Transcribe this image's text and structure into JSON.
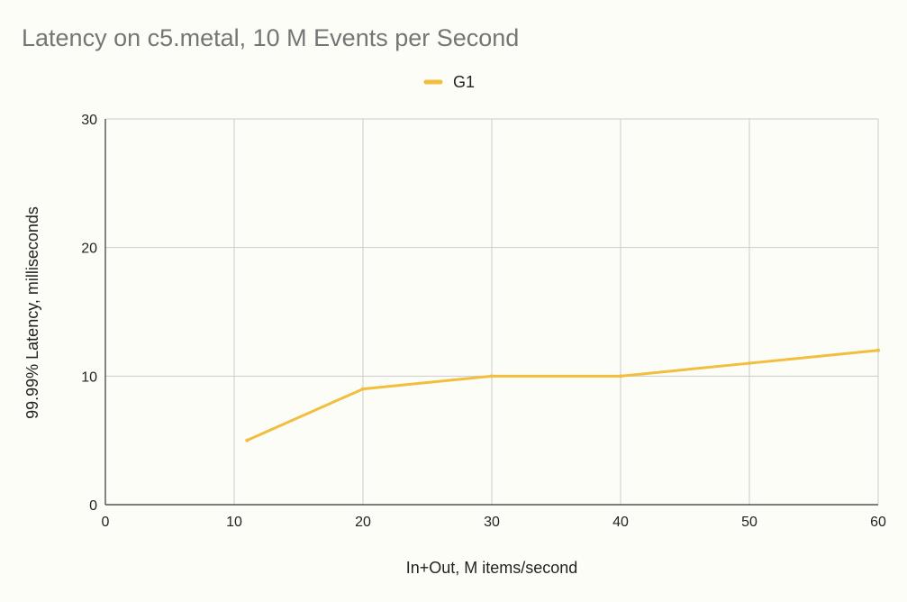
{
  "chart_data": {
    "type": "line",
    "title": "Latency on c5.metal, 10 M Events per Second",
    "xlabel": "In+Out, M items/second",
    "ylabel": "99.99% Latency, milliseconds",
    "xlim": [
      0,
      60
    ],
    "ylim": [
      0,
      30
    ],
    "xticks": [
      0,
      10,
      20,
      30,
      40,
      50,
      60
    ],
    "yticks": [
      0,
      10,
      20,
      30
    ],
    "grid": true,
    "legend_position": "top-center",
    "series": [
      {
        "name": "G1",
        "color": "#f1be3e",
        "points": [
          {
            "x": 11,
            "y": 5
          },
          {
            "x": 20,
            "y": 9
          },
          {
            "x": 30,
            "y": 10
          },
          {
            "x": 40,
            "y": 10
          },
          {
            "x": 50,
            "y": 11
          },
          {
            "x": 60,
            "y": 12
          }
        ]
      }
    ]
  }
}
